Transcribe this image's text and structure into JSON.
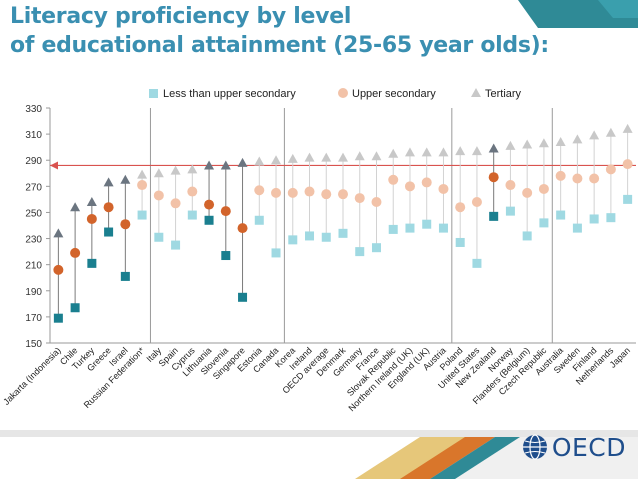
{
  "title_line1": "Literacy proficiency by level",
  "title_line2": "of educational attainment (25-65 year olds):",
  "logo_text": "OECD",
  "colors": {
    "title": "#3a8fb1",
    "less_upper_secondary": "#9fd9e2",
    "less_upper_secondary_highlight": "#1a7f8f",
    "upper_secondary": "#f2c2a8",
    "upper_secondary_highlight": "#d2642b",
    "tertiary": "#c8c8c8",
    "tertiary_highlight": "#6b7580",
    "reference_line": "#d9534f",
    "footer_gold": "#d4a94a",
    "footer_orange": "#d9762b",
    "footer_teal": "#2f8a96"
  },
  "chart_data": {
    "type": "scatter",
    "ylim": [
      150,
      330
    ],
    "yticks": [
      150,
      170,
      190,
      210,
      230,
      250,
      270,
      290,
      310,
      330
    ],
    "legend": [
      "Less than upper secondary",
      "Upper secondary",
      "Tertiary"
    ],
    "reference_line_value": 286,
    "separators_after_index": [
      5,
      13,
      23,
      29
    ],
    "categories": [
      "Jakarta (Indonesia)",
      "Chile",
      "Turkey",
      "Greece",
      "Israel",
      "Russian Federation*",
      "Italy",
      "Spain",
      "Cyprus",
      "Lithuania",
      "Slovenia",
      "Singapore",
      "Estonia",
      "Canada",
      "Korea",
      "Ireland",
      "OECD average",
      "Denmark",
      "Germany",
      "France",
      "Slovak Republic",
      "Northern Ireland (UK)",
      "England (UK)",
      "Austria",
      "Poland",
      "United States",
      "New Zealand",
      "Norway",
      "Flanders (Belgium)",
      "Czech Republic",
      "Australia",
      "Sweden",
      "Finland",
      "Netherlands",
      "Japan"
    ],
    "highlighted": [
      "Jakarta (Indonesia)",
      "Chile",
      "Turkey",
      "Greece",
      "Israel",
      "Lithuania",
      "Slovenia",
      "Singapore",
      "New Zealand"
    ],
    "series": [
      {
        "name": "Less than upper secondary",
        "values": [
          169,
          177,
          211,
          235,
          201,
          248,
          231,
          225,
          248,
          244,
          217,
          185,
          244,
          219,
          229,
          232,
          231,
          234,
          220,
          223,
          237,
          238,
          241,
          238,
          227,
          211,
          247,
          251,
          232,
          242,
          248,
          238,
          245,
          246,
          260
        ]
      },
      {
        "name": "Upper secondary",
        "values": [
          206,
          219,
          245,
          254,
          241,
          271,
          263,
          257,
          266,
          256,
          251,
          238,
          267,
          265,
          265,
          266,
          264,
          264,
          261,
          258,
          275,
          270,
          273,
          268,
          254,
          258,
          277,
          271,
          265,
          268,
          278,
          276,
          276,
          283,
          287
        ]
      },
      {
        "name": "Tertiary",
        "values": [
          234,
          254,
          258,
          273,
          275,
          279,
          280,
          282,
          283,
          286,
          286,
          288,
          289,
          290,
          291,
          292,
          292,
          292,
          293,
          293,
          295,
          296,
          296,
          296,
          297,
          297,
          299,
          301,
          302,
          303,
          304,
          306,
          309,
          311,
          314
        ]
      }
    ]
  }
}
